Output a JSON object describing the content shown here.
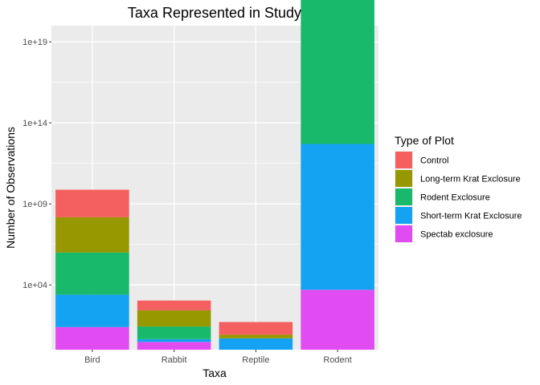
{
  "chart_data": {
    "type": "bar",
    "stacked": true,
    "title": "Taxa Represented in Study",
    "xlabel": "Taxa",
    "ylabel": "Number of Observations",
    "y_scale": "log10",
    "ylim": [
      1,
      1e+20
    ],
    "y_ticks": [
      10000,
      1000000000,
      100000000000000,
      10000000000000000000
    ],
    "y_tick_labels": [
      "1e+04",
      "1e+09",
      "1e+14",
      "1e+19"
    ],
    "categories": [
      "Bird",
      "Rabbit",
      "Reptile",
      "Rodent"
    ],
    "grid": true,
    "legend": {
      "title": "Type of Plot",
      "position": "right"
    },
    "series": [
      {
        "name": "Spectab exclosure",
        "color": "#E76BF3",
        "fill": "#E04CF2",
        "values": [
          25,
          3,
          1,
          5000
        ]
      },
      {
        "name": "Short-term Krat Exclosure",
        "color": "#00A9FF",
        "fill": "#14A2F2",
        "values": [
          100,
          1.5,
          5,
          1000000000
        ]
      },
      {
        "name": "Rodent Exclosure",
        "color": "#00BE67",
        "fill": "#19B96B",
        "values": [
          400,
          6,
          1,
          700000000000
        ]
      },
      {
        "name": "Long-term Krat Exclosure",
        "color": "#999900",
        "fill": "#979800",
        "values": [
          150,
          10,
          1.7,
          20000000000
        ]
      },
      {
        "name": "Control",
        "color": "#F8766D",
        "fill": "#F4605F",
        "values": [
          50,
          4,
          6,
          500000
        ]
      }
    ],
    "legend_order": [
      "Control",
      "Long-term Krat Exclosure",
      "Rodent Exclosure",
      "Short-term Krat Exclosure",
      "Spectab exclosure"
    ]
  }
}
